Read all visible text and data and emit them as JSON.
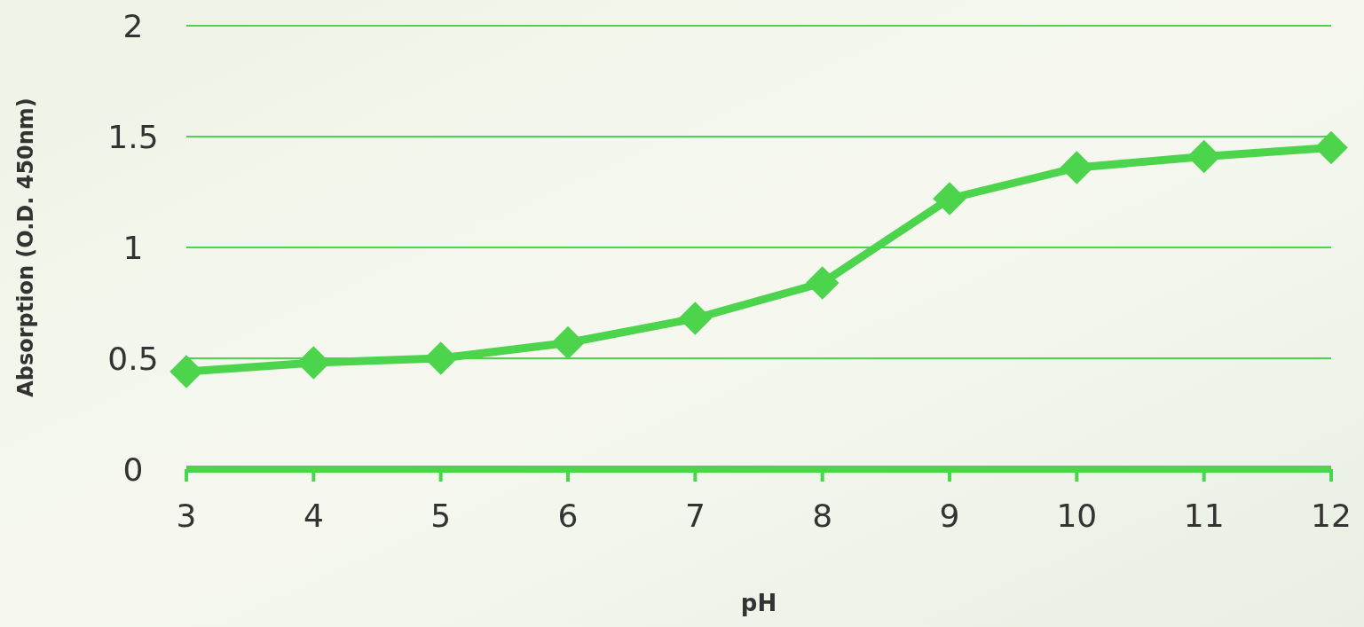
{
  "chart_data": {
    "type": "line",
    "xlabel": "pH",
    "ylabel": "Absorption (O.D. 450nm)",
    "x": [
      3,
      4,
      5,
      6,
      7,
      8,
      9,
      10,
      11,
      12
    ],
    "series": [
      {
        "color": "#4cd44c",
        "values": [
          0.44,
          0.48,
          0.5,
          0.57,
          0.68,
          0.84,
          1.22,
          1.36,
          1.41,
          1.45
        ]
      }
    ],
    "xlim": [
      3,
      12
    ],
    "xticks": [
      3,
      4,
      5,
      6,
      7,
      8,
      9,
      10,
      11,
      12
    ],
    "ylim": [
      0,
      2
    ],
    "yticks": [
      0,
      0.5,
      1,
      1.5,
      2
    ],
    "grid": "y",
    "marker": "diamond",
    "line_style": "solid"
  }
}
